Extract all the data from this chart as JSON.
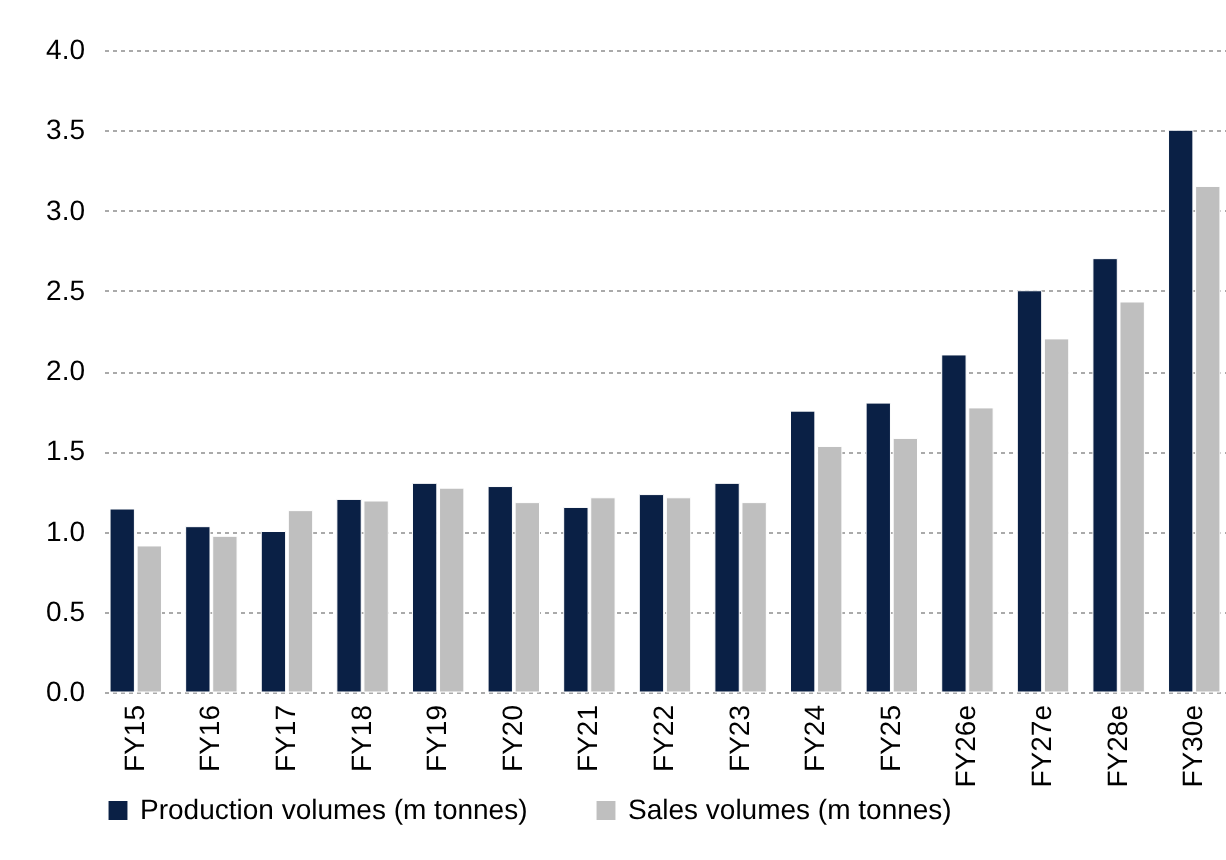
{
  "chart_data": {
    "type": "bar",
    "categories": [
      "FY15",
      "FY16",
      "FY17",
      "FY18",
      "FY19",
      "FY20",
      "FY21",
      "FY22",
      "FY23",
      "FY24",
      "FY25",
      "FY26e",
      "FY27e",
      "FY28e",
      "FY30e"
    ],
    "series": [
      {
        "name": "Production volumes (m tonnes)",
        "color": "#0a2045",
        "values": [
          1.14,
          1.03,
          1.0,
          1.2,
          1.3,
          1.28,
          1.15,
          1.23,
          1.3,
          1.75,
          1.8,
          2.1,
          2.5,
          2.7,
          3.5
        ]
      },
      {
        "name": "Sales volumes (m tonnes)",
        "color": "#bfbfbf",
        "values": [
          0.91,
          0.97,
          1.13,
          1.19,
          1.27,
          1.18,
          1.21,
          1.21,
          1.18,
          1.53,
          1.58,
          1.77,
          2.2,
          2.43,
          3.15
        ]
      }
    ],
    "ylim": [
      0,
      4
    ],
    "yticks": [
      {
        "value": 0,
        "label": "0.0"
      },
      {
        "value": 0.5,
        "label": "0.5"
      },
      {
        "value": 1,
        "label": "1.0"
      },
      {
        "value": 1.5,
        "label": "1.5"
      },
      {
        "value": 2,
        "label": "2.0"
      },
      {
        "value": 2.5,
        "label": "2.5"
      },
      {
        "value": 3,
        "label": "3.0"
      },
      {
        "value": 3.5,
        "label": "3.5"
      },
      {
        "value": 4,
        "label": "4.0"
      }
    ],
    "grid": "y",
    "legend": "bottom"
  }
}
